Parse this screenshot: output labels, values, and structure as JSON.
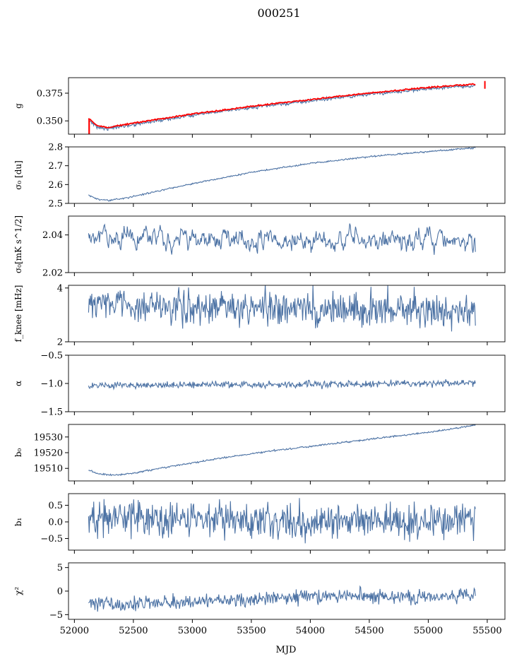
{
  "title": "000251",
  "colors": {
    "series": "#4c72a4",
    "overlay": "#ff0000",
    "axis": "#000000"
  },
  "chart_data": {
    "type": "line",
    "title": "000251",
    "xlabel": "MJD",
    "xlim": [
      51950,
      55650
    ],
    "x_ticks": [
      52000,
      52500,
      53000,
      53500,
      54000,
      54500,
      55000,
      55500
    ],
    "x_tick_labels": [
      "52000",
      "52500",
      "53000",
      "53500",
      "54000",
      "54500",
      "55000",
      "55500"
    ],
    "x_range_data": [
      52120,
      55400
    ],
    "panels": [
      {
        "key": "g",
        "ylabel": "g",
        "ylim": [
          0.338,
          0.389
        ],
        "yticks": [
          0.35,
          0.375
        ],
        "ytick_labels": [
          "0.350",
          "0.375"
        ],
        "trend": [
          [
            52120,
            0.351
          ],
          [
            52200,
            0.344
          ],
          [
            52280,
            0.343
          ],
          [
            52400,
            0.345
          ],
          [
            52700,
            0.35
          ],
          [
            53000,
            0.355
          ],
          [
            53500,
            0.362
          ],
          [
            54000,
            0.368
          ],
          [
            54500,
            0.374
          ],
          [
            55000,
            0.379
          ],
          [
            55400,
            0.382
          ]
        ],
        "noise": 0.0007,
        "overlay": true
      },
      {
        "key": "sigma0",
        "ylabel": "σ₀ [du]",
        "ylim": [
          2.5,
          2.8
        ],
        "yticks": [
          2.5,
          2.6,
          2.7,
          2.8
        ],
        "ytick_labels": [
          "2.5",
          "2.6",
          "2.7",
          "2.8"
        ],
        "trend": [
          [
            52120,
            2.545
          ],
          [
            52200,
            2.52
          ],
          [
            52300,
            2.516
          ],
          [
            52450,
            2.53
          ],
          [
            52700,
            2.565
          ],
          [
            53000,
            2.605
          ],
          [
            53500,
            2.665
          ],
          [
            54000,
            2.712
          ],
          [
            54500,
            2.748
          ],
          [
            55000,
            2.775
          ],
          [
            55400,
            2.795
          ]
        ],
        "noise": 0.002
      },
      {
        "key": "sigma0_mks",
        "ylabel": "σ₀[mK s^1/2]",
        "ylim": [
          2.02,
          2.05
        ],
        "yticks": [
          2.02,
          2.04
        ],
        "ytick_labels": [
          "2.02",
          "2.04"
        ],
        "trend": [
          [
            52120,
            2.038
          ],
          [
            55400,
            2.037
          ]
        ],
        "noise": 0.003,
        "smooth": 3,
        "y_end": 2.031
      },
      {
        "key": "fknee",
        "ylabel": "f_knee [mHz]",
        "ylim": [
          2,
          4.1
        ],
        "yticks": [
          2,
          4
        ],
        "ytick_labels": [
          "2",
          "4"
        ],
        "trend": [
          [
            52120,
            3.55
          ],
          [
            52300,
            3.5
          ],
          [
            52600,
            3.3
          ],
          [
            55400,
            3.15
          ]
        ],
        "noise": 0.32
      },
      {
        "key": "alpha",
        "ylabel": "α",
        "ylim": [
          -1.5,
          -0.5
        ],
        "yticks": [
          -1.5,
          -1.0,
          -0.5
        ],
        "ytick_labels": [
          "−1.5",
          "−1.0",
          "−0.5"
        ],
        "trend": [
          [
            52120,
            -1.04
          ],
          [
            55400,
            -1.0
          ]
        ],
        "noise": 0.03
      },
      {
        "key": "b0",
        "ylabel": "b₀",
        "ylim": [
          19502,
          19538
        ],
        "yticks": [
          19510,
          19520,
          19530
        ],
        "ytick_labels": [
          "19510",
          "19520",
          "19530"
        ],
        "trend": [
          [
            52120,
            19509
          ],
          [
            52200,
            19506.5
          ],
          [
            52350,
            19505.5
          ],
          [
            52500,
            19507
          ],
          [
            52800,
            19511
          ],
          [
            53200,
            19516
          ],
          [
            53600,
            19520.5
          ],
          [
            54000,
            19524
          ],
          [
            54500,
            19528.5
          ],
          [
            55000,
            19533
          ],
          [
            55400,
            19537.5
          ]
        ],
        "noise": 0.25
      },
      {
        "key": "b1",
        "ylabel": "b₁",
        "ylim": [
          -0.85,
          0.85
        ],
        "yticks": [
          -0.5,
          0.0,
          0.5
        ],
        "ytick_labels": [
          "−0.5",
          "0.0",
          "0.5"
        ],
        "trend": [
          [
            52120,
            0.1
          ],
          [
            55400,
            0.0
          ]
        ],
        "noise": 0.26
      },
      {
        "key": "chi2",
        "ylabel": "χ²",
        "ylim": [
          -6,
          6
        ],
        "yticks": [
          -5,
          0,
          5
        ],
        "ytick_labels": [
          "−5",
          "0",
          "5"
        ],
        "trend": [
          [
            52120,
            -2.4
          ],
          [
            52400,
            -3.0
          ],
          [
            52800,
            -2.3
          ],
          [
            53500,
            -1.8
          ],
          [
            54000,
            -1.2
          ],
          [
            54500,
            -1.0
          ],
          [
            55000,
            -1.3
          ],
          [
            55400,
            -0.9
          ]
        ],
        "noise": 0.75
      }
    ]
  }
}
